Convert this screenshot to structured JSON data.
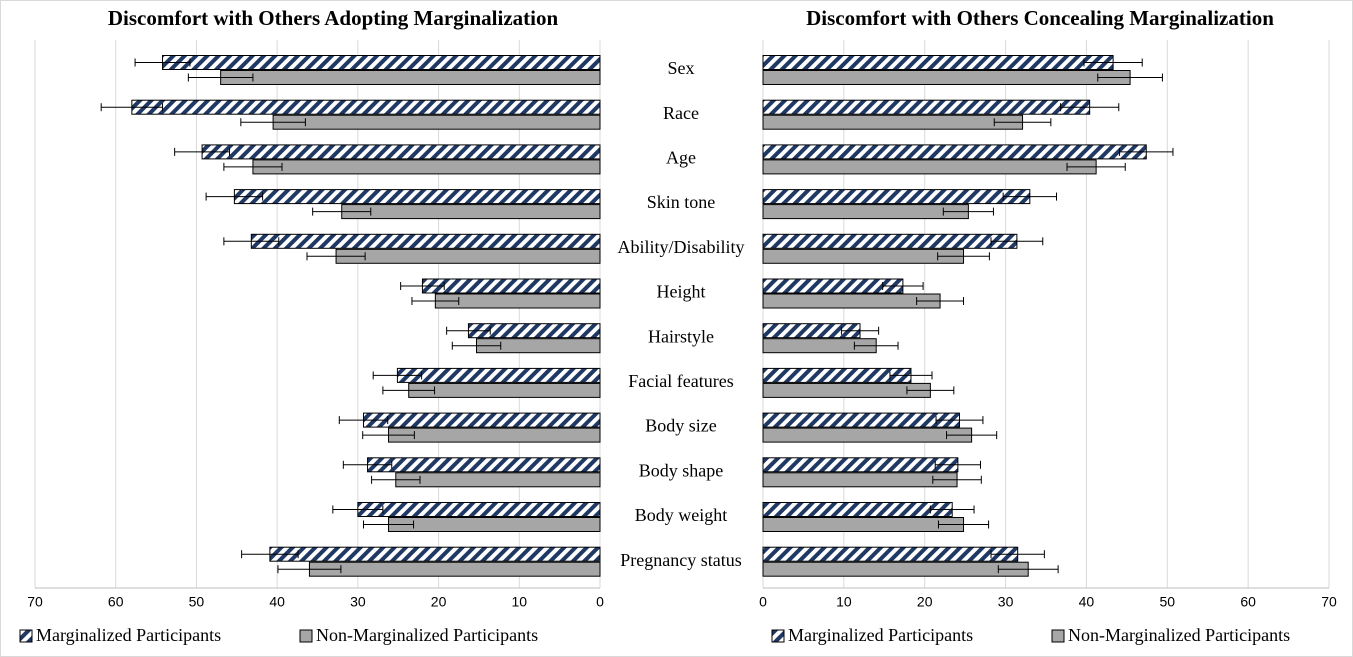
{
  "chart_data": [
    {
      "type": "bar",
      "orientation": "horizontal",
      "reversed": true,
      "title": "Discomfort with Others Adopting Marginalization",
      "categories": [
        "Sex",
        "Race",
        "Age",
        "Skin tone",
        "Ability/Disability",
        "Height",
        "Hairstyle",
        "Facial features",
        "Body size",
        "Body shape",
        "Body weight",
        "Pregnancy status"
      ],
      "xlim": [
        0,
        70
      ],
      "xticks": [
        0,
        10,
        20,
        30,
        40,
        50,
        60,
        70
      ],
      "grid": true,
      "series": [
        {
          "name": "Marginalized Participants",
          "color": "#1f3864",
          "hatch": true,
          "values": [
            54.2,
            58.0,
            49.3,
            45.3,
            43.2,
            22.0,
            16.3,
            25.1,
            29.3,
            28.8,
            30.0,
            40.9
          ],
          "errors": [
            3.4,
            3.8,
            3.4,
            3.5,
            3.4,
            2.7,
            2.7,
            3.0,
            3.0,
            3.0,
            3.1,
            3.5
          ]
        },
        {
          "name": "Non-Marginalized Participants",
          "color": "#a6a6a6",
          "hatch": false,
          "values": [
            47.0,
            40.5,
            43.0,
            32.0,
            32.7,
            20.4,
            15.3,
            23.7,
            26.2,
            25.3,
            26.2,
            36.0
          ],
          "errors": [
            4.0,
            4.0,
            3.6,
            3.6,
            3.6,
            2.9,
            3.0,
            3.2,
            3.2,
            3.0,
            3.1,
            3.9
          ]
        }
      ]
    },
    {
      "type": "bar",
      "orientation": "horizontal",
      "reversed": false,
      "title": "Discomfort with Others Concealing Marginalization",
      "xlim": [
        0,
        70
      ],
      "xticks": [
        0,
        10,
        20,
        30,
        40,
        50,
        60,
        70
      ],
      "grid": true,
      "series": [
        {
          "name": "Marginalized Participants",
          "color": "#1f3864",
          "hatch": true,
          "values": [
            43.3,
            40.4,
            47.4,
            33.0,
            31.4,
            17.3,
            12.0,
            18.3,
            24.3,
            24.1,
            23.4,
            31.5
          ],
          "errors": [
            3.6,
            3.6,
            3.3,
            3.3,
            3.2,
            2.5,
            2.3,
            2.6,
            2.9,
            2.8,
            2.7,
            3.3
          ]
        },
        {
          "name": "Non-Marginalized Participants",
          "color": "#a6a6a6",
          "hatch": false,
          "values": [
            45.4,
            32.1,
            41.2,
            25.4,
            24.8,
            21.9,
            14.0,
            20.7,
            25.8,
            24.0,
            24.8,
            32.8
          ],
          "errors": [
            4.0,
            3.5,
            3.6,
            3.1,
            3.2,
            2.9,
            2.7,
            2.9,
            3.1,
            3.0,
            3.1,
            3.7
          ]
        }
      ]
    }
  ]
}
